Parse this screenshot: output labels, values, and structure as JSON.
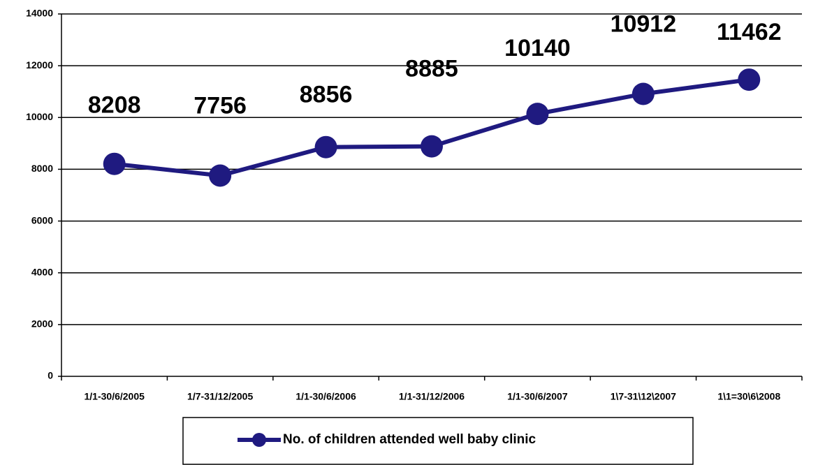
{
  "chart_data": {
    "type": "line",
    "categories": [
      "1/1-30/6/2005",
      "1/7-31/12/2005",
      "1/1-30/6/2006",
      "1/1-31/12/2006",
      "1/1-30/6/2007",
      "1\\7-31\\12\\2007",
      "1\\1=30\\6\\2008"
    ],
    "series": [
      {
        "name": "No. of children attended well baby clinic",
        "color": "#1f1a80",
        "values": [
          8208,
          7756,
          8856,
          8885,
          10140,
          10912,
          11462
        ]
      }
    ],
    "ylim": [
      0,
      14000
    ],
    "yticks": [
      0,
      2000,
      4000,
      6000,
      8000,
      10000,
      12000,
      14000
    ],
    "grid": true,
    "data_labels": true,
    "legend": "bottom"
  }
}
